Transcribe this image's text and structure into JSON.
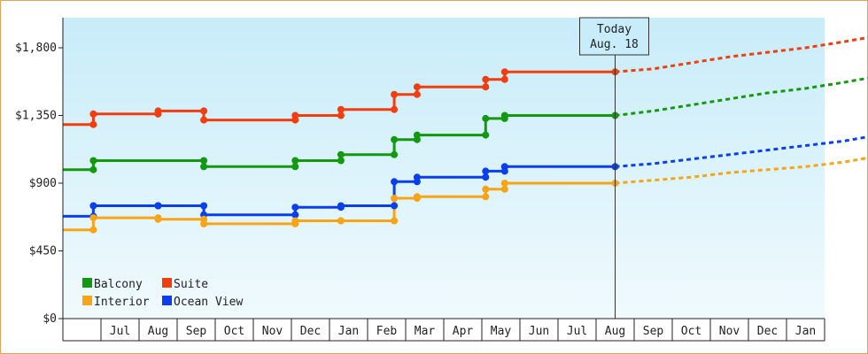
{
  "chart_data": {
    "type": "line",
    "step": true,
    "ylim": [
      0,
      2000
    ],
    "y_ticks": [
      "$0",
      "$450",
      "$900",
      "$1,350",
      "$1,800"
    ],
    "y_tick_values": [
      0,
      450,
      900,
      1350,
      1800
    ],
    "months": [
      "Jul",
      "Aug",
      "Sep",
      "Oct",
      "Nov",
      "Dec",
      "Jan",
      "Feb",
      "Mar",
      "Apr",
      "May",
      "Jun",
      "Jul",
      "Aug",
      "Sep",
      "Oct",
      "Nov",
      "Dec",
      "Jan"
    ],
    "x_range": [
      -0.5,
      19.5
    ],
    "today": {
      "x": 14.0,
      "label_line1": "Today",
      "label_line2": "Aug. 18"
    },
    "legend": {
      "position": "bottom-left"
    },
    "colors": {
      "plot_top": "#c8ecf9",
      "plot_bottom": "#f0fafd",
      "frame": "#e2a35a"
    },
    "series": [
      {
        "name": "Suite",
        "color": "#f23d0f",
        "points": [
          [
            -0.5,
            1290
          ],
          [
            0.3,
            1290
          ],
          [
            0.3,
            1360
          ],
          [
            2.0,
            1360
          ],
          [
            2.0,
            1380
          ],
          [
            3.2,
            1380
          ],
          [
            3.2,
            1320
          ],
          [
            5.6,
            1320
          ],
          [
            5.6,
            1350
          ],
          [
            6.8,
            1350
          ],
          [
            6.8,
            1390
          ],
          [
            8.2,
            1390
          ],
          [
            8.2,
            1490
          ],
          [
            8.8,
            1490
          ],
          [
            8.8,
            1540
          ],
          [
            10.6,
            1540
          ],
          [
            10.6,
            1590
          ],
          [
            11.1,
            1590
          ],
          [
            11.1,
            1640
          ],
          [
            14.0,
            1640
          ]
        ],
        "forecast": [
          [
            14.0,
            1640
          ],
          [
            15.0,
            1660
          ],
          [
            16.0,
            1700
          ],
          [
            17.0,
            1740
          ],
          [
            18.0,
            1770
          ],
          [
            19.0,
            1800
          ],
          [
            20.0,
            1840
          ],
          [
            20.9,
            1880
          ]
        ]
      },
      {
        "name": "Balcony",
        "color": "#12990f",
        "points": [
          [
            -0.5,
            990
          ],
          [
            0.3,
            990
          ],
          [
            0.3,
            1050
          ],
          [
            3.2,
            1050
          ],
          [
            3.2,
            1010
          ],
          [
            5.6,
            1010
          ],
          [
            5.6,
            1050
          ],
          [
            6.8,
            1050
          ],
          [
            6.8,
            1090
          ],
          [
            8.2,
            1090
          ],
          [
            8.2,
            1190
          ],
          [
            8.8,
            1190
          ],
          [
            8.8,
            1220
          ],
          [
            10.6,
            1220
          ],
          [
            10.6,
            1330
          ],
          [
            11.1,
            1330
          ],
          [
            11.1,
            1350
          ],
          [
            14.0,
            1350
          ]
        ],
        "forecast": [
          [
            14.0,
            1350
          ],
          [
            15.0,
            1380
          ],
          [
            16.0,
            1420
          ],
          [
            17.0,
            1460
          ],
          [
            18.0,
            1500
          ],
          [
            19.0,
            1530
          ],
          [
            20.0,
            1570
          ],
          [
            20.9,
            1610
          ]
        ]
      },
      {
        "name": "Ocean View",
        "color": "#0a3ff0",
        "points": [
          [
            -0.5,
            680
          ],
          [
            0.3,
            680
          ],
          [
            0.3,
            750
          ],
          [
            2.0,
            750
          ],
          [
            2.0,
            750
          ],
          [
            3.2,
            750
          ],
          [
            3.2,
            690
          ],
          [
            5.6,
            690
          ],
          [
            5.6,
            740
          ],
          [
            6.8,
            740
          ],
          [
            6.8,
            750
          ],
          [
            8.2,
            750
          ],
          [
            8.2,
            910
          ],
          [
            8.8,
            910
          ],
          [
            8.8,
            940
          ],
          [
            10.6,
            940
          ],
          [
            10.6,
            980
          ],
          [
            11.1,
            980
          ],
          [
            11.1,
            1010
          ],
          [
            14.0,
            1010
          ]
        ],
        "forecast": [
          [
            14.0,
            1010
          ],
          [
            15.0,
            1030
          ],
          [
            16.0,
            1060
          ],
          [
            17.0,
            1090
          ],
          [
            18.0,
            1120
          ],
          [
            19.0,
            1150
          ],
          [
            20.0,
            1180
          ],
          [
            20.9,
            1220
          ]
        ]
      },
      {
        "name": "Interior",
        "color": "#f7a516",
        "points": [
          [
            -0.5,
            590
          ],
          [
            0.3,
            590
          ],
          [
            0.3,
            670
          ],
          [
            2.0,
            670
          ],
          [
            2.0,
            660
          ],
          [
            3.2,
            660
          ],
          [
            3.2,
            630
          ],
          [
            5.6,
            630
          ],
          [
            5.6,
            650
          ],
          [
            6.8,
            650
          ],
          [
            6.8,
            650
          ],
          [
            8.2,
            650
          ],
          [
            8.2,
            800
          ],
          [
            8.8,
            800
          ],
          [
            8.8,
            810
          ],
          [
            10.6,
            810
          ],
          [
            10.6,
            860
          ],
          [
            11.1,
            860
          ],
          [
            11.1,
            900
          ],
          [
            14.0,
            900
          ]
        ],
        "forecast": [
          [
            14.0,
            900
          ],
          [
            15.0,
            920
          ],
          [
            16.0,
            940
          ],
          [
            17.0,
            970
          ],
          [
            18.0,
            990
          ],
          [
            19.0,
            1010
          ],
          [
            20.0,
            1040
          ],
          [
            20.9,
            1080
          ]
        ]
      }
    ],
    "legend_order": [
      "Balcony",
      "Suite",
      "Interior",
      "Ocean View"
    ]
  }
}
